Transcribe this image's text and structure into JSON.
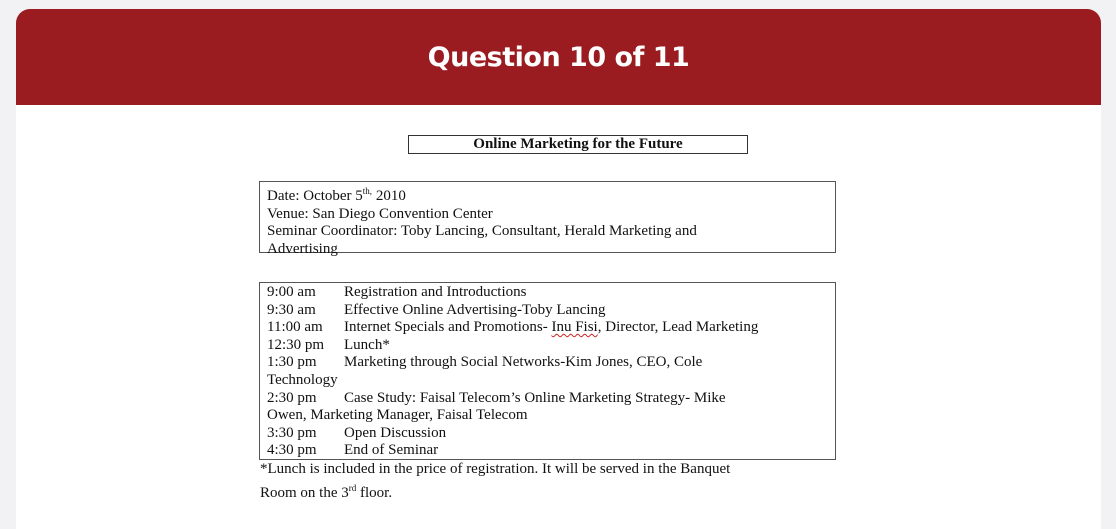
{
  "header": {
    "title": "Question 10 of 11"
  },
  "document": {
    "title": "Online Marketing for the Future",
    "info": {
      "date_prefix": "Date: October 5",
      "date_sup": "th,",
      "date_suffix": " 2010",
      "venue": "Venue: San Diego Convention Center",
      "coordinator_line1": "Seminar Coordinator: Toby Lancing, Consultant, Herald Marketing and",
      "coordinator_line2": "Advertising"
    },
    "schedule": [
      {
        "time": "9:00 am",
        "event": "Registration and Introductions"
      },
      {
        "time": "9:30 am",
        "event": "Effective Online Advertising-Toby Lancing"
      },
      {
        "time": "11:00 am",
        "event_a": "Internet Specials and Promotions- ",
        "event_b": "Inu Fisi",
        "event_c": ", Director, Lead Marketing"
      },
      {
        "time": "12:30 pm",
        "event": "Lunch*"
      },
      {
        "time": "1:30 pm",
        "event": "Marketing through Social Networks-Kim Jones, CEO, Cole",
        "cont": "Technology"
      },
      {
        "time": "2:30  pm",
        "event": "Case Study: Faisal Telecom’s Online Marketing Strategy- Mike",
        "cont": "Owen, Marketing Manager, Faisal Telecom"
      },
      {
        "time": "3:30  pm",
        "event": "Open Discussion"
      },
      {
        "time": "4:30  pm",
        "event": "End of Seminar"
      }
    ],
    "footnote": {
      "line1": "*Lunch is included in the price of registration. It will be served in the Banquet",
      "line2_prefix": "Room on the 3",
      "line2_sup": "rd",
      "line2_suffix": " floor."
    }
  }
}
